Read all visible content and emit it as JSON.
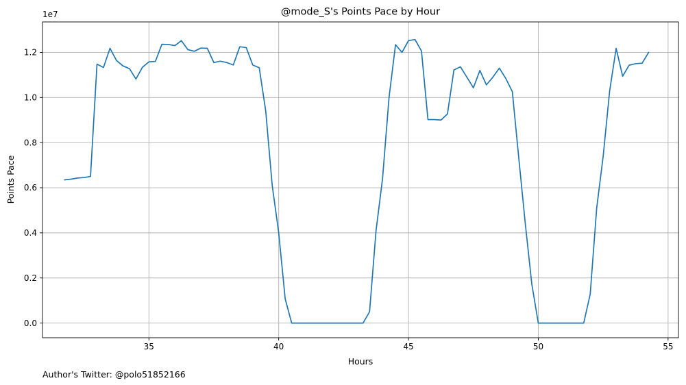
{
  "chart_data": {
    "type": "line",
    "title": "@mode_S's Points Pace by Hour",
    "xlabel": "Hours",
    "ylabel": "Points Pace",
    "y_offset_label": "1e7",
    "footer": "Author's Twitter: @polo51852166",
    "xlim": [
      30.9,
      55.4
    ],
    "ylim": [
      -0.065,
      1.335
    ],
    "x_ticks": [
      35,
      40,
      45,
      50,
      55
    ],
    "x_tick_labels": [
      "35",
      "40",
      "45",
      "50",
      "55"
    ],
    "y_ticks": [
      0.0,
      0.2,
      0.4,
      0.6,
      0.8,
      1.0,
      1.2
    ],
    "y_tick_labels": [
      "0.0",
      "0.2",
      "0.4",
      "0.6",
      "0.8",
      "1.0",
      "1.2"
    ],
    "grid": true,
    "color": "#1f77b4",
    "series": [
      {
        "x": [
          31.75,
          32.0,
          32.25,
          32.5,
          32.75,
          33.0,
          33.25,
          33.5,
          33.75,
          34.0,
          34.25,
          34.5,
          34.75,
          35.0,
          35.25,
          35.5,
          35.75,
          36.0,
          36.25,
          36.5,
          36.75,
          37.0,
          37.25,
          37.5,
          37.75,
          38.0,
          38.25,
          38.5,
          38.75,
          39.0,
          39.25,
          39.5,
          39.75,
          40.0,
          40.25,
          40.5,
          40.75,
          41.0,
          41.25,
          41.5,
          41.75,
          42.0,
          42.25,
          42.5,
          42.75,
          43.0,
          43.25,
          43.5,
          43.75,
          44.0,
          44.25,
          44.5,
          44.75,
          45.0,
          45.25,
          45.5,
          45.75,
          46.0,
          46.25,
          46.5,
          46.75,
          47.0,
          47.25,
          47.5,
          47.75,
          48.0,
          48.25,
          48.5,
          48.75,
          49.0,
          49.25,
          49.5,
          49.75,
          50.0,
          50.25,
          50.5,
          50.75,
          51.0,
          51.25,
          51.5,
          51.75,
          52.0,
          52.25,
          52.5,
          52.75,
          53.0,
          53.25,
          53.5,
          53.75,
          54.0,
          54.25
        ],
        "y": [
          0.635,
          0.638,
          0.643,
          0.645,
          0.65,
          1.148,
          1.133,
          1.218,
          1.164,
          1.14,
          1.128,
          1.082,
          1.134,
          1.158,
          1.16,
          1.236,
          1.235,
          1.23,
          1.252,
          1.212,
          1.205,
          1.219,
          1.218,
          1.155,
          1.161,
          1.155,
          1.144,
          1.225,
          1.221,
          1.144,
          1.132,
          0.94,
          0.61,
          0.4,
          0.107,
          0.0,
          0.0,
          0.0,
          0.0,
          0.0,
          0.0,
          0.0,
          0.0,
          0.0,
          0.0,
          0.0,
          0.0,
          0.05,
          0.41,
          0.64,
          1.0,
          1.234,
          1.2,
          1.252,
          1.257,
          1.206,
          0.902,
          0.902,
          0.9,
          0.927,
          1.122,
          1.136,
          1.09,
          1.043,
          1.12,
          1.056,
          1.09,
          1.13,
          1.084,
          1.026,
          0.73,
          0.44,
          0.173,
          0.0,
          0.0,
          0.0,
          0.0,
          0.0,
          0.0,
          0.0,
          0.0,
          0.128,
          0.51,
          0.74,
          1.03,
          1.218,
          1.094,
          1.143,
          1.15,
          1.152,
          1.2
        ]
      }
    ]
  }
}
